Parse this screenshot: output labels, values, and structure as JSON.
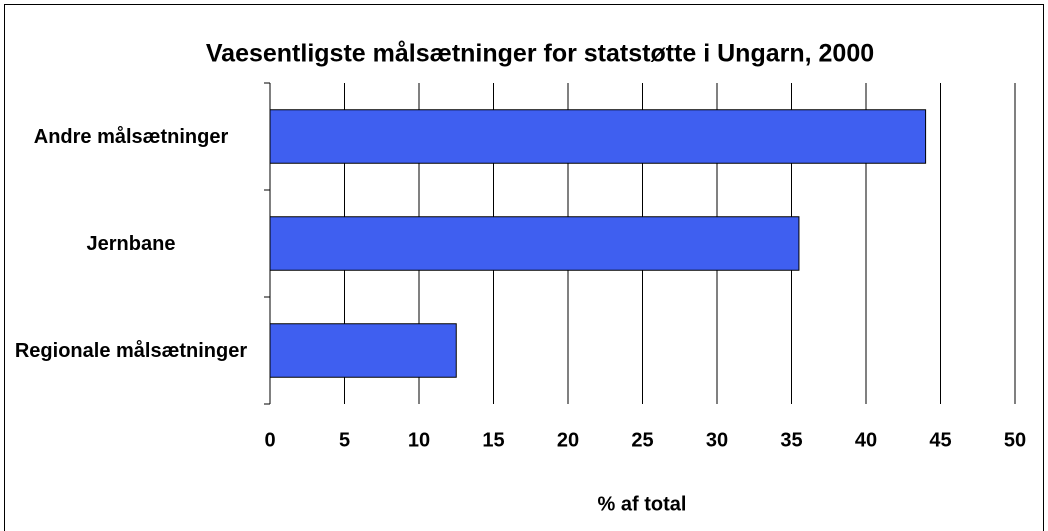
{
  "chart_data": {
    "type": "bar",
    "orientation": "horizontal",
    "title": "Vaesentligste målsætninger for statstøtte i Ungarn, 2000",
    "categories": [
      "Andre målsætninger",
      "Jernbane",
      "Regionale målsætninger"
    ],
    "values": [
      44,
      35.5,
      12.5
    ],
    "color": "#3f5ff0",
    "xlabel": "% af total",
    "xlim": [
      0,
      50
    ],
    "xticks": [
      0,
      5,
      10,
      15,
      20,
      25,
      30,
      35,
      40,
      45,
      50
    ],
    "grid": true
  }
}
